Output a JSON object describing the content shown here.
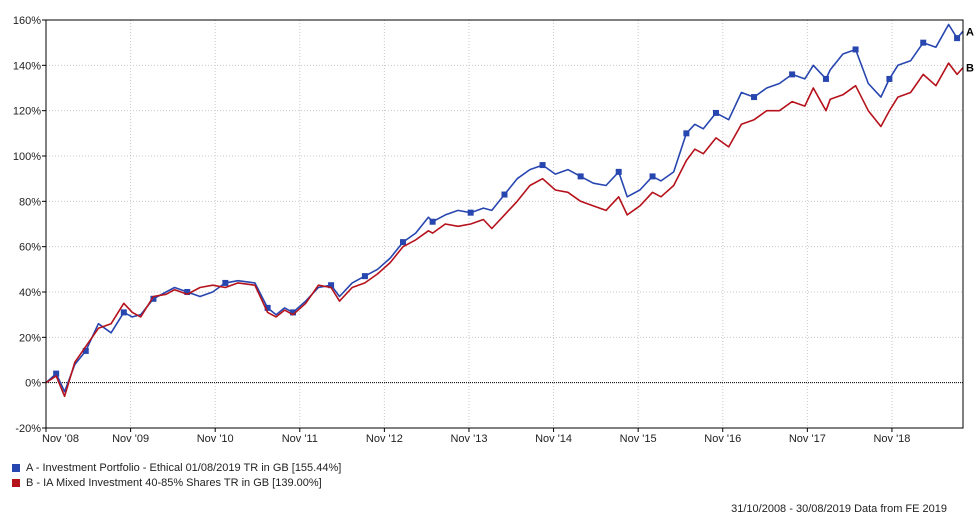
{
  "chart_data": {
    "type": "line",
    "ylim": [
      -20,
      160
    ],
    "y_ticks": [
      -20,
      0,
      20,
      40,
      60,
      80,
      100,
      120,
      140,
      160
    ],
    "y_tick_labels": [
      "-20%",
      "0%",
      "20%",
      "40%",
      "60%",
      "80%",
      "100%",
      "120%",
      "140%",
      "160%"
    ],
    "x_tick_labels": [
      "Nov '08",
      "Nov '09",
      "Nov '10",
      "Nov '11",
      "Nov '12",
      "Nov '13",
      "Nov '14",
      "Nov '15",
      "Nov '16",
      "Nov '17",
      "Nov '18"
    ],
    "x_range_years": [
      2008.83,
      2019.67
    ],
    "x_tick_years": [
      2008.83,
      2009.83,
      2010.83,
      2011.83,
      2012.83,
      2013.83,
      2014.83,
      2015.83,
      2016.83,
      2017.83,
      2018.83
    ],
    "grid": true,
    "series": [
      {
        "name": "A - Investment Portfolio - Ethical 01/08/2019 TR in GB [155.44%]",
        "end_label": "A",
        "color": "#2846b0",
        "x": [
          2008.83,
          2008.95,
          2009.05,
          2009.17,
          2009.3,
          2009.45,
          2009.6,
          2009.75,
          2009.85,
          2009.95,
          2010.1,
          2010.25,
          2010.35,
          2010.5,
          2010.65,
          2010.8,
          2010.95,
          2011.1,
          2011.3,
          2011.45,
          2011.55,
          2011.65,
          2011.75,
          2011.9,
          2012.05,
          2012.2,
          2012.3,
          2012.45,
          2012.6,
          2012.75,
          2012.9,
          2013.05,
          2013.2,
          2013.35,
          2013.4,
          2013.55,
          2013.7,
          2013.85,
          2014.0,
          2014.1,
          2014.25,
          2014.4,
          2014.55,
          2014.7,
          2014.85,
          2015.0,
          2015.15,
          2015.3,
          2015.45,
          2015.6,
          2015.7,
          2015.85,
          2016.0,
          2016.1,
          2016.25,
          2016.4,
          2016.5,
          2016.6,
          2016.75,
          2016.9,
          2017.05,
          2017.2,
          2017.35,
          2017.5,
          2017.65,
          2017.8,
          2017.9,
          2018.05,
          2018.1,
          2018.25,
          2018.4,
          2018.55,
          2018.7,
          2018.8,
          2018.9,
          2019.05,
          2019.2,
          2019.35,
          2019.5,
          2019.6,
          2019.67
        ],
        "values": [
          0,
          4,
          -4,
          8,
          14,
          26,
          22,
          31,
          29,
          30,
          37,
          40,
          42,
          40,
          38,
          40,
          44,
          45,
          44,
          33,
          30,
          33,
          31,
          36,
          42,
          43,
          38,
          44,
          47,
          50,
          55,
          62,
          66,
          73,
          71,
          74,
          76,
          75,
          77,
          76,
          83,
          90,
          94,
          96,
          92,
          94,
          91,
          88,
          87,
          93,
          82,
          85,
          91,
          89,
          93,
          110,
          114,
          112,
          119,
          116,
          128,
          126,
          130,
          132,
          136,
          134,
          140,
          134,
          138,
          145,
          147,
          132,
          126,
          134,
          140,
          142,
          150,
          148,
          158,
          152,
          155
        ]
      },
      {
        "name": "B - IA Mixed Investment 40-85% Shares TR in GB [139.00%]",
        "end_label": "B",
        "color": "#b5121b",
        "x": [
          2008.83,
          2008.95,
          2009.05,
          2009.17,
          2009.3,
          2009.45,
          2009.6,
          2009.75,
          2009.85,
          2009.95,
          2010.1,
          2010.25,
          2010.35,
          2010.5,
          2010.65,
          2010.8,
          2010.95,
          2011.1,
          2011.3,
          2011.45,
          2011.55,
          2011.65,
          2011.75,
          2011.9,
          2012.05,
          2012.2,
          2012.3,
          2012.45,
          2012.6,
          2012.75,
          2012.9,
          2013.05,
          2013.2,
          2013.35,
          2013.4,
          2013.55,
          2013.7,
          2013.85,
          2014.0,
          2014.1,
          2014.25,
          2014.4,
          2014.55,
          2014.7,
          2014.85,
          2015.0,
          2015.15,
          2015.3,
          2015.45,
          2015.6,
          2015.7,
          2015.85,
          2016.0,
          2016.1,
          2016.25,
          2016.4,
          2016.5,
          2016.6,
          2016.75,
          2016.9,
          2017.05,
          2017.2,
          2017.35,
          2017.5,
          2017.65,
          2017.8,
          2017.9,
          2018.05,
          2018.1,
          2018.25,
          2018.4,
          2018.55,
          2018.7,
          2018.8,
          2018.9,
          2019.05,
          2019.2,
          2019.35,
          2019.5,
          2019.6,
          2019.67
        ],
        "values": [
          0,
          3,
          -6,
          9,
          16,
          24,
          26,
          35,
          31,
          29,
          38,
          39,
          41,
          39,
          42,
          43,
          42,
          44,
          43,
          31,
          29,
          32,
          30,
          35,
          43,
          42,
          36,
          42,
          44,
          48,
          53,
          60,
          63,
          67,
          66,
          70,
          69,
          70,
          72,
          68,
          74,
          80,
          87,
          90,
          85,
          84,
          80,
          78,
          76,
          82,
          74,
          78,
          84,
          82,
          87,
          98,
          103,
          101,
          108,
          104,
          114,
          116,
          120,
          120,
          124,
          122,
          130,
          120,
          125,
          127,
          131,
          120,
          113,
          120,
          126,
          128,
          136,
          131,
          141,
          136,
          139
        ]
      }
    ]
  },
  "footer_text": "31/10/2008 - 30/08/2019 Data from FE 2019"
}
